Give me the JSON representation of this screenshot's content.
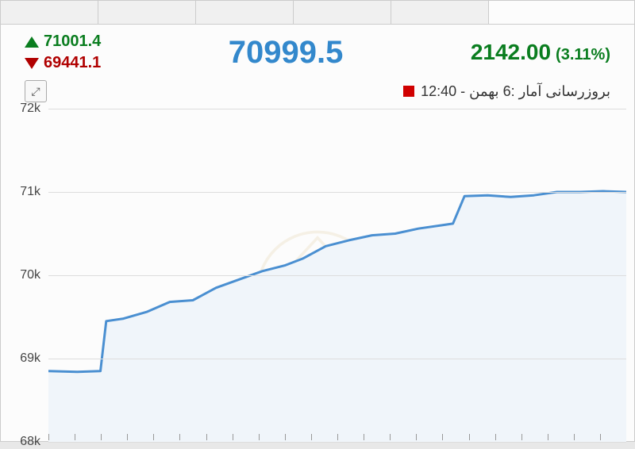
{
  "header": {
    "high": "71001.4",
    "low": "69441.1",
    "value": "70999.5",
    "change_abs": "2142.00",
    "change_pct": "(3.11%)"
  },
  "update": {
    "label": "بروزرسانی آمار :6 بهمن - 12:40"
  },
  "chart": {
    "type": "area",
    "ylim": [
      68000,
      72000
    ],
    "ytick_step": 1000,
    "yticks": [
      {
        "value": 72000,
        "label": "72k"
      },
      {
        "value": 71000,
        "label": "71k"
      },
      {
        "value": 70000,
        "label": "70k"
      },
      {
        "value": 69000,
        "label": "69k"
      },
      {
        "value": 68000,
        "label": "68k"
      }
    ],
    "line_color": "#4a8fd1",
    "line_width": 3,
    "fill_color": "#f0f5fa",
    "grid_color": "#dddddd",
    "background_color": "#fcfcfc",
    "label_fontsize": 16,
    "label_color": "#444444",
    "x_tick_count": 22,
    "data": [
      {
        "x": 0.0,
        "y": 68850
      },
      {
        "x": 0.05,
        "y": 68840
      },
      {
        "x": 0.09,
        "y": 68850
      },
      {
        "x": 0.1,
        "y": 69450
      },
      {
        "x": 0.13,
        "y": 69480
      },
      {
        "x": 0.17,
        "y": 69560
      },
      {
        "x": 0.21,
        "y": 69680
      },
      {
        "x": 0.25,
        "y": 69700
      },
      {
        "x": 0.29,
        "y": 69850
      },
      {
        "x": 0.33,
        "y": 69950
      },
      {
        "x": 0.37,
        "y": 70050
      },
      {
        "x": 0.41,
        "y": 70120
      },
      {
        "x": 0.44,
        "y": 70200
      },
      {
        "x": 0.48,
        "y": 70350
      },
      {
        "x": 0.52,
        "y": 70420
      },
      {
        "x": 0.56,
        "y": 70480
      },
      {
        "x": 0.6,
        "y": 70500
      },
      {
        "x": 0.64,
        "y": 70560
      },
      {
        "x": 0.68,
        "y": 70600
      },
      {
        "x": 0.7,
        "y": 70620
      },
      {
        "x": 0.72,
        "y": 70950
      },
      {
        "x": 0.76,
        "y": 70960
      },
      {
        "x": 0.8,
        "y": 70940
      },
      {
        "x": 0.84,
        "y": 70960
      },
      {
        "x": 0.88,
        "y": 71000
      },
      {
        "x": 0.92,
        "y": 71000
      },
      {
        "x": 0.96,
        "y": 71010
      },
      {
        "x": 1.0,
        "y": 71000
      }
    ]
  },
  "colors": {
    "up": "#0a7d1f",
    "down": "#b00000",
    "main_value": "#3388cc",
    "indicator": "#d00000"
  }
}
